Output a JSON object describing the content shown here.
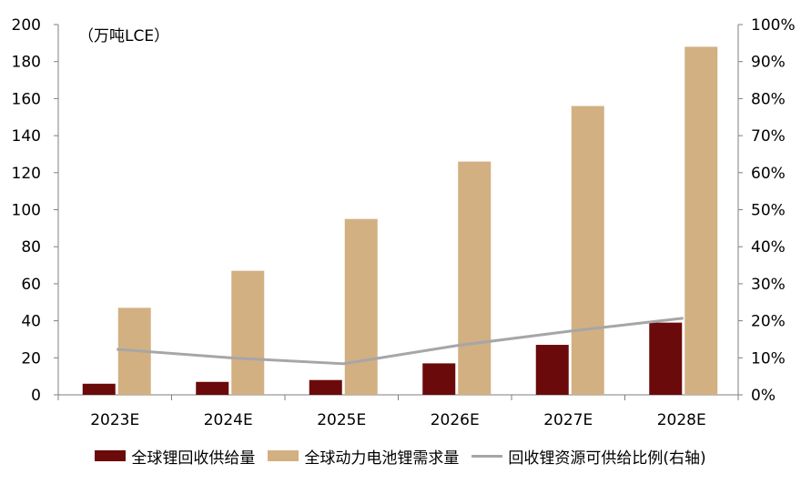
{
  "chart_data": {
    "type": "bar",
    "unit_label": "（万吨LCE）",
    "categories": [
      "2023E",
      "2024E",
      "2025E",
      "2026E",
      "2027E",
      "2028E"
    ],
    "y_left": {
      "ticks": [
        "0",
        "20",
        "40",
        "60",
        "80",
        "100",
        "120",
        "140",
        "160",
        "180",
        "200"
      ],
      "range": [
        0,
        200
      ]
    },
    "y_right": {
      "ticks": [
        "0%",
        "10%",
        "20%",
        "30%",
        "40%",
        "50%",
        "60%",
        "70%",
        "80%",
        "90%",
        "100%"
      ],
      "range": [
        0,
        1
      ]
    },
    "series": [
      {
        "name": "全球锂回收供给量",
        "kind": "bar",
        "axis": "left",
        "color": "#6b0a0a",
        "values": [
          6,
          7,
          8,
          17,
          27,
          39
        ]
      },
      {
        "name": "全球动力电池锂需求量",
        "kind": "bar",
        "axis": "right_of_pair",
        "color": "#d2b082",
        "values": [
          47,
          67,
          95,
          126,
          156,
          188
        ]
      },
      {
        "name": "回收锂资源可供给比例(右轴)",
        "kind": "line",
        "axis": "right",
        "color": "#a6a6a6",
        "values": [
          0.123,
          0.1,
          0.084,
          0.133,
          0.172,
          0.207
        ]
      }
    ],
    "grid": false,
    "legend_position": "bottom"
  }
}
